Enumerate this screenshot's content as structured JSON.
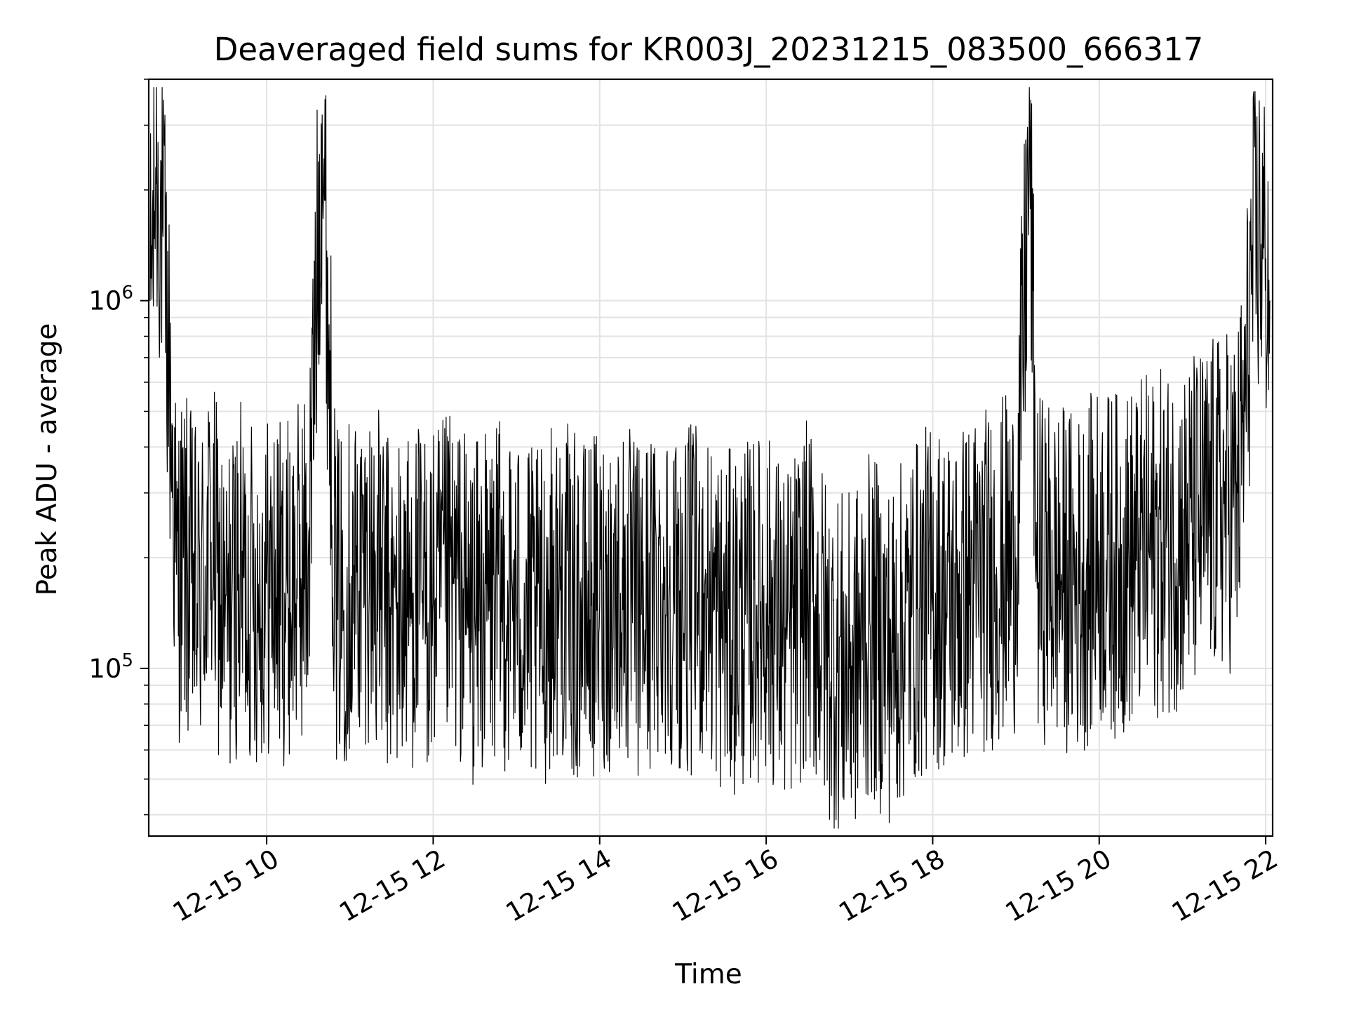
{
  "chart_data": {
    "type": "line",
    "title": "Deaveraged field sums for KR003J_20231215_083500_666317",
    "xlabel": "Time",
    "ylabel": "Peak ADU - average",
    "yscale": "log",
    "grid": true,
    "line_color": "#000000",
    "xlim": [
      "2023-12-15 08:35",
      "2023-12-15 22:05"
    ],
    "ylim": [
      35000,
      4000000
    ],
    "x_ticks": [
      {
        "value": "2023-12-15 10:00",
        "label": "12-15 10"
      },
      {
        "value": "2023-12-15 12:00",
        "label": "12-15 12"
      },
      {
        "value": "2023-12-15 14:00",
        "label": "12-15 14"
      },
      {
        "value": "2023-12-15 16:00",
        "label": "12-15 16"
      },
      {
        "value": "2023-12-15 18:00",
        "label": "12-15 18"
      },
      {
        "value": "2023-12-15 20:00",
        "label": "12-15 20"
      },
      {
        "value": "2023-12-15 22:00",
        "label": "12-15 22"
      }
    ],
    "y_ticks": [
      {
        "value": 100000,
        "base": "10",
        "exp": "5"
      },
      {
        "value": 1000000,
        "base": "10",
        "exp": "6"
      }
    ],
    "series": [
      {
        "x": [
          "2023-12-15 08:36",
          "2023-12-15 08:40",
          "2023-12-15 08:45",
          "2023-12-15 08:50",
          "2023-12-15 08:55",
          "2023-12-15 09:00",
          "2023-12-15 09:10",
          "2023-12-15 09:20",
          "2023-12-15 09:30",
          "2023-12-15 09:40",
          "2023-12-15 09:50",
          "2023-12-15 10:00",
          "2023-12-15 10:15",
          "2023-12-15 10:30",
          "2023-12-15 10:40",
          "2023-12-15 10:50",
          "2023-12-15 11:00",
          "2023-12-15 11:15",
          "2023-12-15 11:30",
          "2023-12-15 11:45",
          "2023-12-15 12:00",
          "2023-12-15 12:15",
          "2023-12-15 12:30",
          "2023-12-15 12:45",
          "2023-12-15 13:00",
          "2023-12-15 13:15",
          "2023-12-15 13:30",
          "2023-12-15 13:45",
          "2023-12-15 14:00",
          "2023-12-15 14:15",
          "2023-12-15 14:30",
          "2023-12-15 14:45",
          "2023-12-15 15:00",
          "2023-12-15 15:15",
          "2023-12-15 15:30",
          "2023-12-15 15:45",
          "2023-12-15 16:00",
          "2023-12-15 16:15",
          "2023-12-15 16:30",
          "2023-12-15 16:45",
          "2023-12-15 17:00",
          "2023-12-15 17:15",
          "2023-12-15 17:30",
          "2023-12-15 17:45",
          "2023-12-15 18:00",
          "2023-12-15 18:15",
          "2023-12-15 18:30",
          "2023-12-15 18:45",
          "2023-12-15 19:00",
          "2023-12-15 19:10",
          "2023-12-15 19:15",
          "2023-12-15 19:30",
          "2023-12-15 19:45",
          "2023-12-15 20:00",
          "2023-12-15 20:15",
          "2023-12-15 20:30",
          "2023-12-15 20:45",
          "2023-12-15 21:00",
          "2023-12-15 21:15",
          "2023-12-15 21:30",
          "2023-12-15 21:40",
          "2023-12-15 21:45",
          "2023-12-15 21:50",
          "2023-12-15 21:55",
          "2023-12-15 22:00",
          "2023-12-15 22:03"
        ],
        "y": [
          1000000,
          2300000,
          1600000,
          600000,
          180000,
          200000,
          150000,
          220000,
          130000,
          180000,
          160000,
          170000,
          160000,
          200000,
          3200000,
          150000,
          170000,
          190000,
          140000,
          160000,
          150000,
          170000,
          140000,
          160000,
          150000,
          130000,
          170000,
          140000,
          150000,
          160000,
          140000,
          170000,
          150000,
          160000,
          130000,
          140000,
          150000,
          120000,
          160000,
          110000,
          100000,
          130000,
          110000,
          140000,
          160000,
          150000,
          170000,
          180000,
          200000,
          2700000,
          190000,
          180000,
          170000,
          200000,
          190000,
          210000,
          220000,
          230000,
          260000,
          280000,
          300000,
          500000,
          1200000,
          1500000,
          1300000,
          1000000
        ]
      }
    ]
  }
}
